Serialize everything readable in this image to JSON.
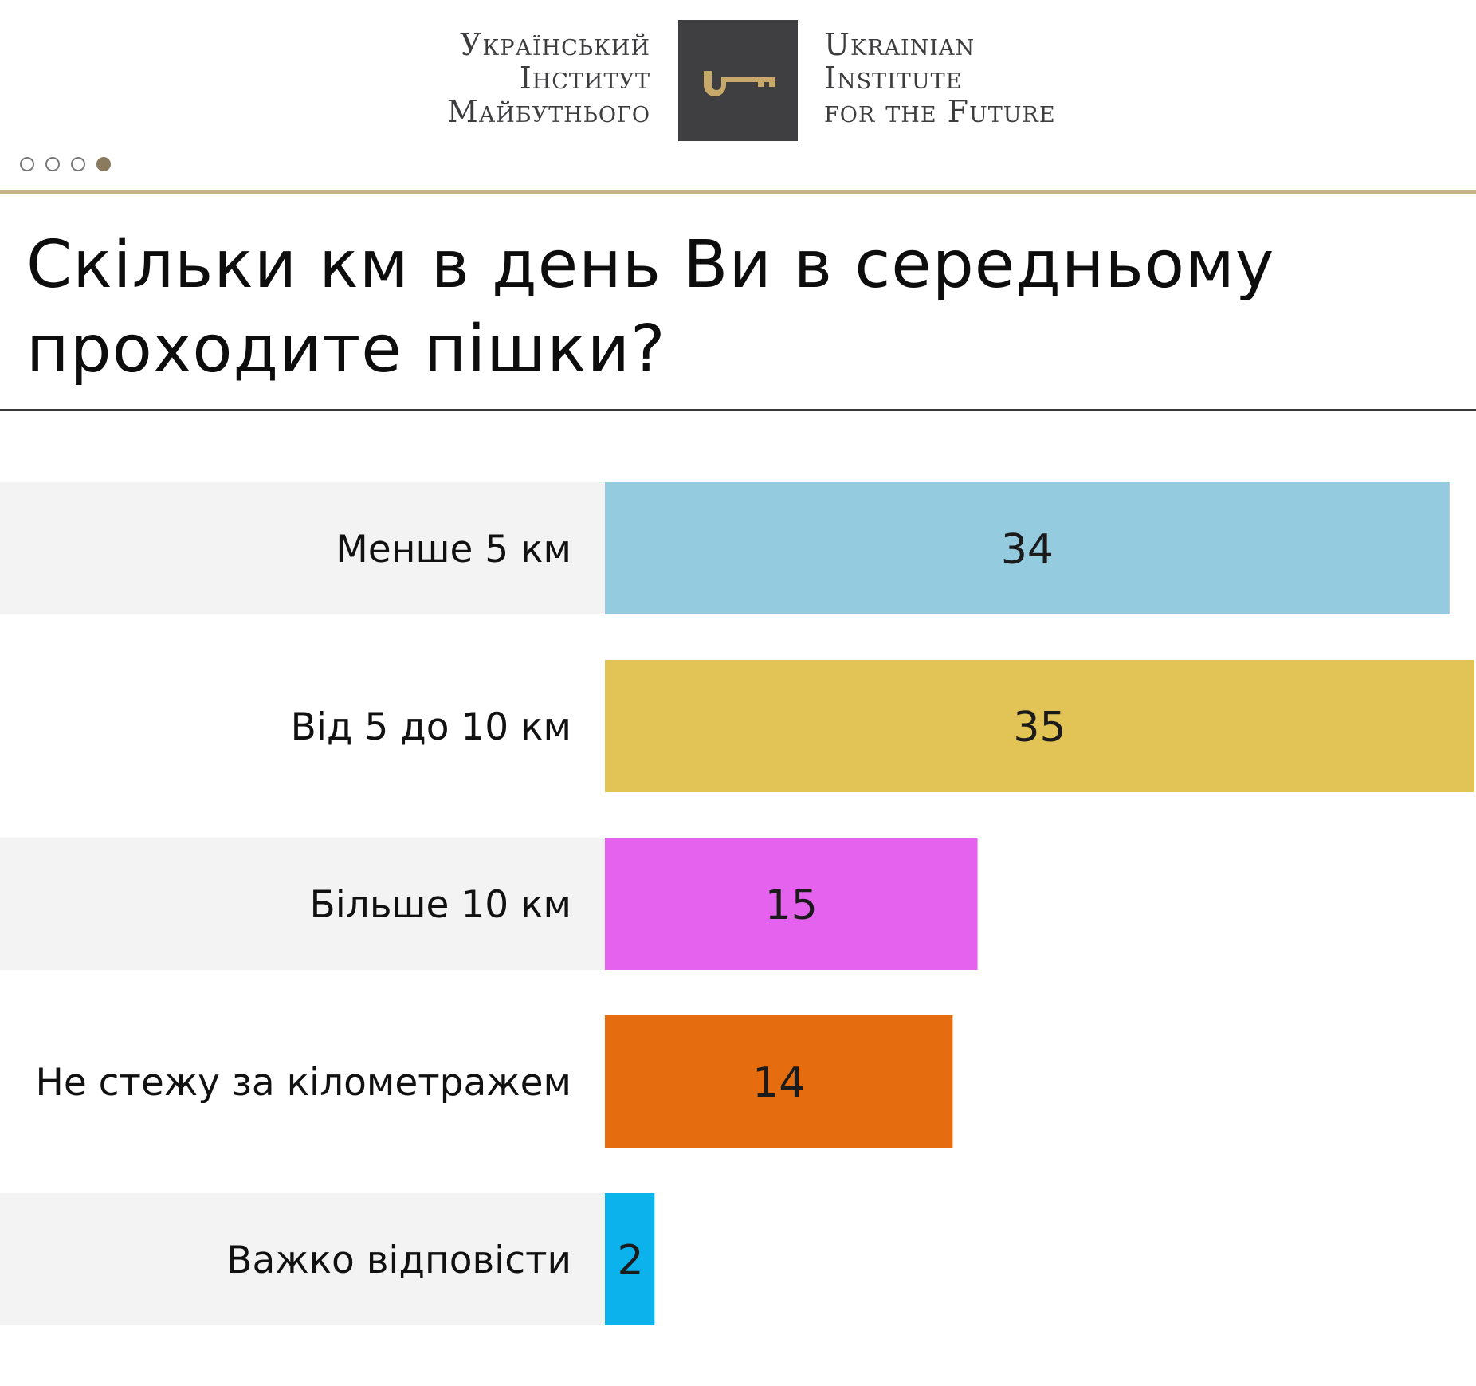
{
  "logo": {
    "ua_lines": [
      "Український",
      "Інститут",
      "Майбутнього"
    ],
    "en_lines": [
      "Ukrainian",
      "Institute",
      "for the Future"
    ],
    "icon": "key-icon",
    "colors": {
      "mark_bg": "#3f3e40",
      "key": "#c9a96a"
    }
  },
  "pager": {
    "total": 4,
    "active": 4
  },
  "title": "Скільки км в день Ви в середньому проходите пішки?",
  "chart_data": {
    "type": "bar",
    "orientation": "horizontal",
    "categories": [
      "Менше 5 км",
      "Від 5 до 10 км",
      "Більше 10 км",
      "Не стежу за кілометражем",
      "Важко відповісти"
    ],
    "values": [
      34,
      35,
      15,
      14,
      2
    ],
    "colors": [
      "#95cbdf",
      "#e2c356",
      "#e462ed",
      "#e66d0f",
      "#0bb2eb"
    ],
    "xlim": [
      0,
      35
    ],
    "title": "Скільки км в день Ви в середньому проходите пішки?",
    "xlabel": "",
    "ylabel": "",
    "legend": "none",
    "grid": false
  }
}
